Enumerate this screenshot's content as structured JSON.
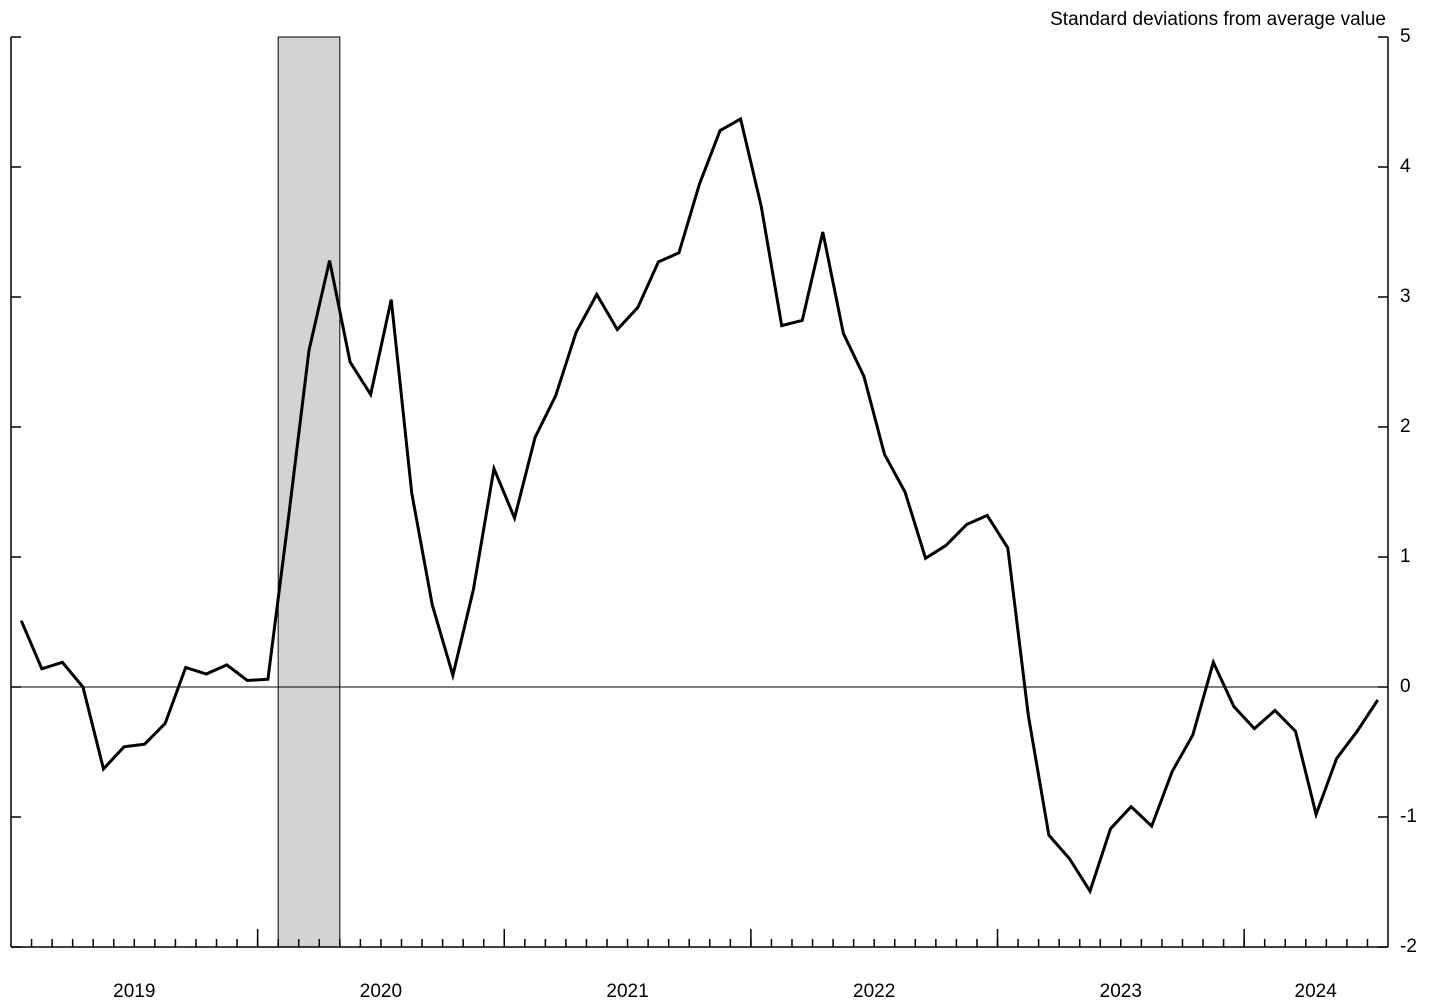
{
  "chart_data": {
    "type": "line",
    "y_axis_label": "Standard deviations from average value",
    "x": [
      2019.0417,
      2019.125,
      2019.2083,
      2019.2917,
      2019.375,
      2019.4583,
      2019.5417,
      2019.625,
      2019.7083,
      2019.7917,
      2019.875,
      2019.9583,
      2020.0417,
      2020.125,
      2020.2083,
      2020.2917,
      2020.375,
      2020.4583,
      2020.5417,
      2020.625,
      2020.7083,
      2020.7917,
      2020.875,
      2020.9583,
      2021.0417,
      2021.125,
      2021.2083,
      2021.2917,
      2021.375,
      2021.4583,
      2021.5417,
      2021.625,
      2021.7083,
      2021.7917,
      2021.875,
      2021.9583,
      2022.0417,
      2022.125,
      2022.2083,
      2022.2917,
      2022.375,
      2022.4583,
      2022.5417,
      2022.625,
      2022.7083,
      2022.7917,
      2022.875,
      2022.9583,
      2023.0417,
      2023.125,
      2023.2083,
      2023.2917,
      2023.375,
      2023.4583,
      2023.5417,
      2023.625,
      2023.7083,
      2023.7917,
      2023.875,
      2023.9583,
      2024.0417,
      2024.125,
      2024.2083,
      2024.2917,
      2024.375,
      2024.4583,
      2024.5417
    ],
    "series": [
      {
        "color": "#000000",
        "values": [
          0.51,
          0.14,
          0.19,
          0.0,
          -0.63,
          -0.46,
          -0.44,
          -0.28,
          0.15,
          0.1,
          0.17,
          0.05,
          0.06,
          1.3,
          2.59,
          3.28,
          2.5,
          2.25,
          2.98,
          1.49,
          0.63,
          0.09,
          0.75,
          1.68,
          1.3,
          1.92,
          2.24,
          2.73,
          3.02,
          2.75,
          2.92,
          3.27,
          3.34,
          3.87,
          4.28,
          4.37,
          3.7,
          2.78,
          2.82,
          3.5,
          2.72,
          2.39,
          1.79,
          1.5,
          0.99,
          1.09,
          1.25,
          1.32,
          1.07,
          -0.22,
          -1.14,
          -1.32,
          -1.57,
          -1.09,
          -0.92,
          -1.07,
          -0.65,
          -0.37,
          0.19,
          -0.15,
          -0.32,
          -0.18,
          -0.34,
          -0.98,
          -0.55,
          -0.34,
          -0.1
        ]
      }
    ],
    "shading": [
      {
        "start": 2020.0833,
        "end": 2020.3333,
        "color": "#d3d3d3"
      }
    ],
    "xlim": [
      2019,
      2024.5833
    ],
    "xticks": [
      {
        "value": 2019.5,
        "label": "2019"
      },
      {
        "value": 2020.5,
        "label": "2020"
      },
      {
        "value": 2021.5,
        "label": "2021"
      },
      {
        "value": 2022.5,
        "label": "2022"
      },
      {
        "value": 2023.5,
        "label": "2023"
      },
      {
        "value": 2024.29,
        "label": "2024"
      }
    ],
    "x_major_ticks": [
      2020,
      2021,
      2022,
      2023,
      2024
    ],
    "ylim": [
      -2,
      5
    ],
    "yticks": [
      -2,
      -1,
      0,
      1,
      2,
      3,
      4,
      5
    ],
    "zero_line": true
  }
}
